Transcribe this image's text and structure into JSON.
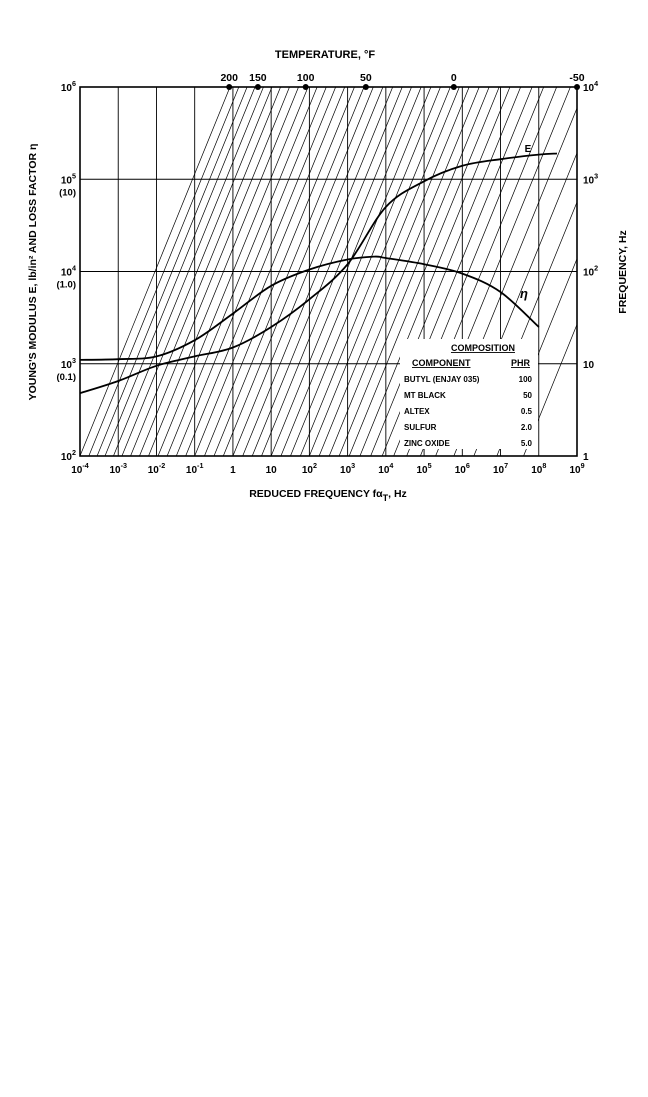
{
  "chart_data": {
    "type": "line",
    "top_axis_title": "TEMPERATURE, °F",
    "x_axis_title_main": "REDUCED FREQUENCY fα",
    "x_axis_title_sub": "T",
    "x_axis_title_unit": ", Hz",
    "y_left_title": "YOUNG'S MODULUS E, lb/in² AND LOSS FACTOR η",
    "y_right_title": "FREQUENCY, Hz",
    "x_scale": "log",
    "y_scale": "log",
    "x_range": [
      0.0001,
      1000000000
    ],
    "y_left_range": [
      100,
      1000000
    ],
    "y_right_range": [
      1,
      10000
    ],
    "grid": true,
    "x_ticks": [
      {
        "base": "10",
        "exp": "-4",
        "value": 0.0001
      },
      {
        "base": "10",
        "exp": "-3",
        "value": 0.001
      },
      {
        "base": "10",
        "exp": "-2",
        "value": 0.01
      },
      {
        "base": "10",
        "exp": "-1",
        "value": 0.1
      },
      {
        "base": "1",
        "exp": "",
        "value": 1
      },
      {
        "base": "10",
        "exp": "",
        "value": 10
      },
      {
        "base": "10",
        "exp": "2",
        "value": 100
      },
      {
        "base": "10",
        "exp": "3",
        "value": 1000
      },
      {
        "base": "10",
        "exp": "4",
        "value": 10000
      },
      {
        "base": "10",
        "exp": "5",
        "value": 100000
      },
      {
        "base": "10",
        "exp": "6",
        "value": 1000000
      },
      {
        "base": "10",
        "exp": "7",
        "value": 10000000
      },
      {
        "base": "10",
        "exp": "8",
        "value": 100000000
      },
      {
        "base": "10",
        "exp": "9",
        "value": 1000000000
      }
    ],
    "y_left_ticks": [
      {
        "base": "10",
        "exp": "2",
        "eta": "",
        "value": 100
      },
      {
        "base": "10",
        "exp": "3",
        "eta": "(0.1)",
        "value": 1000
      },
      {
        "base": "10",
        "exp": "4",
        "eta": "(1.0)",
        "value": 10000
      },
      {
        "base": "10",
        "exp": "5",
        "eta": "(10)",
        "value": 100000
      },
      {
        "base": "10",
        "exp": "6",
        "eta": "",
        "value": 1000000
      }
    ],
    "y_right_ticks": [
      {
        "base": "1",
        "exp": "",
        "value": 1
      },
      {
        "base": "10",
        "exp": "",
        "value": 10
      },
      {
        "base": "10",
        "exp": "2",
        "value": 100
      },
      {
        "base": "10",
        "exp": "3",
        "value": 1000
      },
      {
        "base": "10",
        "exp": "4",
        "value": 10000
      }
    ],
    "temperature_ticks": [
      {
        "label": "200",
        "x_value": 0.8
      },
      {
        "label": "150",
        "x_value": 4.5
      },
      {
        "label": "100",
        "x_value": 80
      },
      {
        "label": "50",
        "x_value": 3000
      },
      {
        "label": "0",
        "x_value": 600000
      },
      {
        "label": "-50",
        "x_value": 1000000000
      }
    ],
    "isotherm_ticks_bottom": [
      0.0001,
      0.00017,
      0.00028,
      0.00045,
      0.00075,
      0.00125,
      0.0021,
      0.0036,
      0.0062,
      0.011,
      0.019,
      0.033,
      0.058,
      0.1,
      0.18,
      0.32,
      0.56,
      1,
      1.8,
      3.2,
      5.6,
      10,
      18,
      32,
      58,
      100,
      180,
      330,
      600,
      1100,
      2100,
      4000,
      8000,
      16000,
      35000,
      80000,
      200000,
      600000,
      2000000,
      8000000,
      40000000
    ],
    "series": [
      {
        "name": "E",
        "x": [
          0.0001,
          0.001,
          0.01,
          0.1,
          1,
          10,
          100,
          1000,
          10000,
          100000,
          1000000,
          10000000,
          100000000,
          300000000
        ],
        "y": [
          480,
          650,
          950,
          1200,
          1500,
          2500,
          5000,
          12000,
          50000,
          95000,
          140000,
          165000,
          185000,
          190000
        ]
      },
      {
        "name": "η",
        "x": [
          0.0001,
          0.001,
          0.01,
          0.1,
          1,
          10,
          100,
          1000,
          5000,
          10000,
          100000,
          1000000,
          10000000,
          100000000
        ],
        "y": [
          0.11,
          0.112,
          0.12,
          0.18,
          0.35,
          0.7,
          1.05,
          1.35,
          1.45,
          1.4,
          1.2,
          0.95,
          0.6,
          0.25
        ]
      }
    ],
    "annotation": {
      "title": "COMPOSITION",
      "headers": [
        "COMPONENT",
        "PHR"
      ],
      "rows": [
        [
          "BUTYL (ENJAY 035)",
          "100"
        ],
        [
          "MT BLACK",
          "50"
        ],
        [
          "ALTEX",
          "0.5"
        ],
        [
          "SULFUR",
          "2.0"
        ],
        [
          "ZINC OXIDE",
          "5.0"
        ]
      ]
    }
  }
}
